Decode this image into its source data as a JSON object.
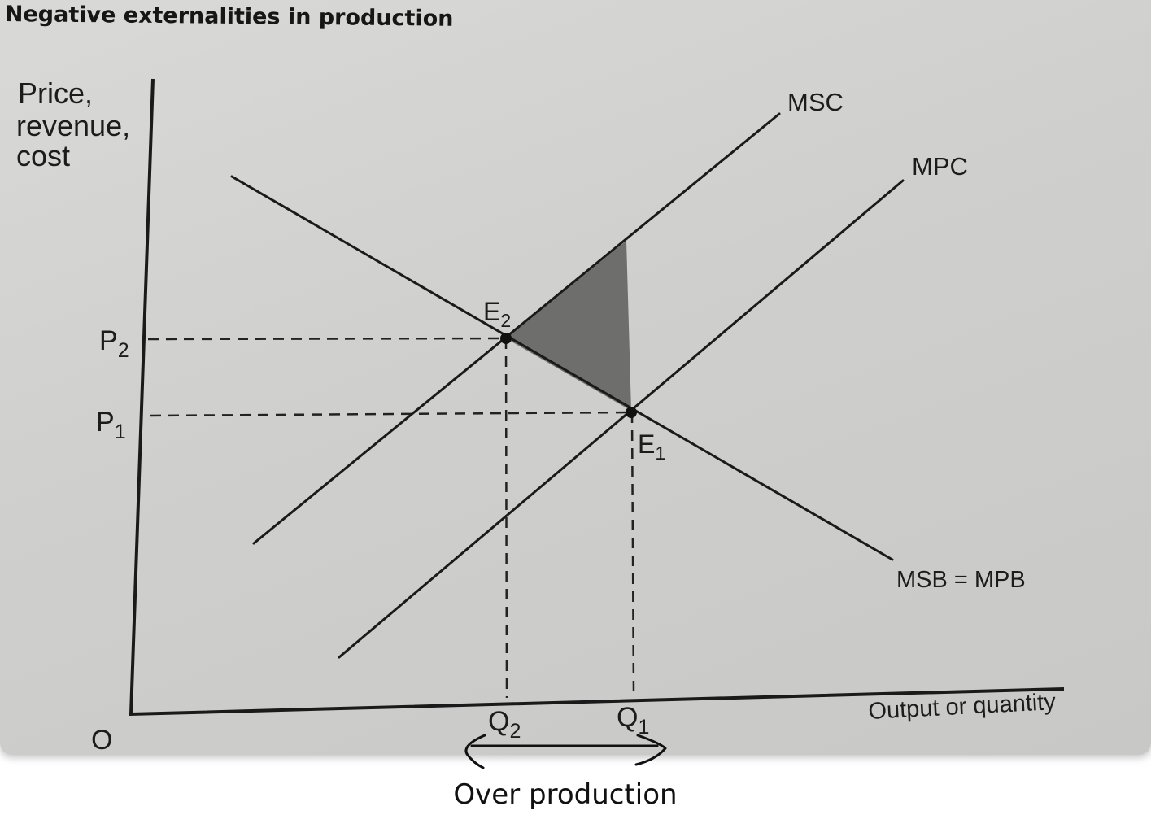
{
  "title": "Negative externalities in production",
  "axes": {
    "y_label_lines": [
      "Price,",
      "revenue,",
      "cost"
    ],
    "x_label": "Output or quantity",
    "origin": "O"
  },
  "curves": {
    "msc": "MSC",
    "mpc": "MPC",
    "demand": "MSB = MPB"
  },
  "points": {
    "e2": {
      "base": "E",
      "sub": "2"
    },
    "e1": {
      "base": "E",
      "sub": "1"
    }
  },
  "prices": {
    "p2": {
      "base": "P",
      "sub": "2"
    },
    "p1": {
      "base": "P",
      "sub": "1"
    }
  },
  "quantities": {
    "q2": {
      "base": "Q",
      "sub": "2"
    },
    "q1": {
      "base": "Q",
      "sub": "1"
    }
  },
  "annotation": "Over production",
  "colors": {
    "line": "#1a1a1a",
    "welfare_loss_fill": "#6e6e6c",
    "background": "#d3d3d1"
  }
}
